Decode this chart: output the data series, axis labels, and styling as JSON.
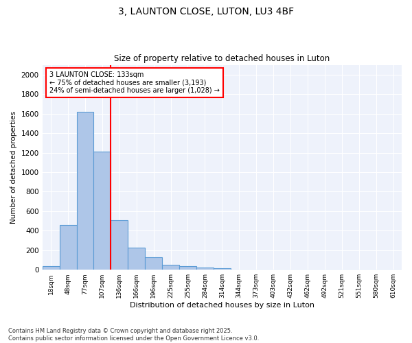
{
  "title1": "3, LAUNTON CLOSE, LUTON, LU3 4BF",
  "title2": "Size of property relative to detached houses in Luton",
  "xlabel": "Distribution of detached houses by size in Luton",
  "ylabel": "Number of detached properties",
  "categories": [
    "18sqm",
    "48sqm",
    "77sqm",
    "107sqm",
    "136sqm",
    "166sqm",
    "196sqm",
    "225sqm",
    "255sqm",
    "284sqm",
    "314sqm",
    "344sqm",
    "373sqm",
    "403sqm",
    "432sqm",
    "462sqm",
    "492sqm",
    "521sqm",
    "551sqm",
    "580sqm",
    "610sqm"
  ],
  "values": [
    35,
    460,
    1620,
    1210,
    510,
    225,
    130,
    50,
    40,
    25,
    15,
    0,
    0,
    0,
    0,
    0,
    0,
    0,
    0,
    0,
    0
  ],
  "bar_color": "#aec6e8",
  "bar_edge_color": "#5b9bd5",
  "bg_color": "#eef2fb",
  "vline_color": "red",
  "annotation_text": "3 LAUNTON CLOSE: 133sqm\n← 75% of detached houses are smaller (3,193)\n24% of semi-detached houses are larger (1,028) →",
  "annotation_box_color": "red",
  "ylim": [
    0,
    2100
  ],
  "yticks": [
    0,
    200,
    400,
    600,
    800,
    1000,
    1200,
    1400,
    1600,
    1800,
    2000
  ],
  "footer_line1": "Contains HM Land Registry data © Crown copyright and database right 2025.",
  "footer_line2": "Contains public sector information licensed under the Open Government Licence v3.0."
}
